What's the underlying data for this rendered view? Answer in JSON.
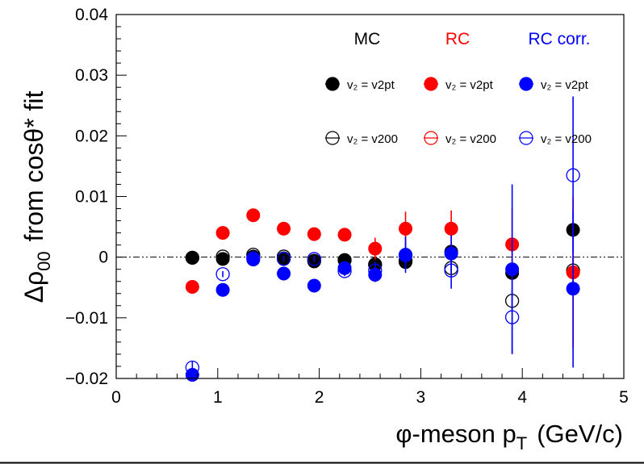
{
  "chart_data": {
    "type": "scatter",
    "xlabel": "φ-meson p",
    "xlabel_sub": "T",
    "xlabel_unit": "(GeV/c)",
    "ylabel": "Δρ",
    "ylabel_sub": "00",
    "ylabel_suffix": "from cosθ* fit",
    "xlim": [
      0,
      5
    ],
    "ylim": [
      -0.02,
      0.04
    ],
    "xticks": [
      0,
      1,
      2,
      3,
      4,
      5
    ],
    "yticks": [
      -0.02,
      -0.01,
      0,
      0.01,
      0.02,
      0.03,
      0.04
    ],
    "xtick_labels": [
      "0",
      "1",
      "2",
      "3",
      "4",
      "5"
    ],
    "ytick_labels": [
      "−0.02",
      "−0.01",
      "0",
      "0.01",
      "0.02",
      "0.03",
      "0.04"
    ],
    "grid": false,
    "reference_line": 0,
    "legend_position": "top-right",
    "legend_groups": [
      {
        "label": "MC",
        "color": "#000000"
      },
      {
        "label": "RC",
        "color": "#ff0000"
      },
      {
        "label": "RC corr.",
        "color": "#0000ff"
      }
    ],
    "legend_entries": [
      {
        "text": "v₂ = v2pt",
        "color": "#000000",
        "filled": true
      },
      {
        "text": "v₂ = v2pt",
        "color": "#ff0000",
        "filled": true
      },
      {
        "text": "v₂ = v2pt",
        "color": "#0000ff",
        "filled": true
      },
      {
        "text": "v₂ = v200",
        "color": "#000000",
        "filled": false
      },
      {
        "text": "v₂ = v200",
        "color": "#ff0000",
        "filled": false
      },
      {
        "text": "v₂ = v200",
        "color": "#0000ff",
        "filled": false
      }
    ],
    "series": [
      {
        "color": "#000000",
        "filled": false,
        "x": [
          0.75,
          1.05,
          1.35,
          1.65,
          1.95,
          2.25,
          2.55,
          2.85,
          3.3,
          3.9,
          4.5
        ],
        "y": [
          -0.0001,
          0.0001,
          0.0004,
          0.0001,
          -0.0006,
          -0.0005,
          -0.0012,
          -0.0006,
          -0.0018,
          -0.0072,
          -0.0022
        ],
        "err": [
          0.0002,
          0.0005,
          0.0004,
          0.0005,
          0.0004,
          0.0005,
          0.0005,
          0.0006,
          0.0009,
          0.0018,
          0.0022
        ]
      },
      {
        "color": "#000000",
        "filled": true,
        "x": [
          0.75,
          1.05,
          1.35,
          1.65,
          1.95,
          2.25,
          2.55,
          2.85,
          3.3,
          3.9,
          4.5
        ],
        "y": [
          -0.0001,
          -0.0003,
          0.0001,
          -0.0002,
          -0.0007,
          -0.0005,
          -0.0013,
          -0.0008,
          0.0009,
          -0.0026,
          0.0045
        ],
        "err": [
          0.0002,
          0.0003,
          0.0003,
          0.0003,
          0.0003,
          0.0004,
          0.0004,
          0.0005,
          0.0007,
          0.0012,
          0.0015
        ]
      },
      {
        "color": "#ff0000",
        "filled": true,
        "x": [
          0.75,
          1.05,
          1.35,
          1.65,
          1.95,
          2.25,
          2.55,
          2.85,
          3.3,
          3.9,
          4.5
        ],
        "y": [
          -0.0049,
          0.004,
          0.0069,
          0.0047,
          0.0038,
          0.0037,
          0.0014,
          0.0047,
          0.0047,
          0.0021,
          -0.0025
        ],
        "err": [
          0.0008,
          0.0006,
          0.0006,
          0.0006,
          0.0008,
          0.001,
          0.0018,
          0.0028,
          0.003,
          0.006,
          0.0125
        ]
      },
      {
        "color": "#0000ff",
        "filled": false,
        "x": [
          0.75,
          1.05,
          1.35,
          1.65,
          1.95,
          2.25,
          2.55,
          2.85,
          3.3,
          3.9,
          4.5
        ],
        "y": [
          -0.0182,
          -0.0028,
          -0.0002,
          -0.0003,
          -0.0003,
          -0.0023,
          -0.0022,
          0.0003,
          -0.0022,
          -0.0099,
          0.0135
        ],
        "err": [
          0.001,
          0.0005,
          0.0004,
          0.0005,
          0.0005,
          0.0008,
          0.0014,
          0.002,
          0.003,
          0.006,
          0.013
        ]
      },
      {
        "color": "#0000ff",
        "filled": true,
        "x": [
          0.75,
          1.05,
          1.35,
          1.65,
          1.95,
          2.25,
          2.55,
          2.85,
          3.3,
          3.9,
          4.5
        ],
        "y": [
          -0.0194,
          -0.0054,
          -0.0004,
          -0.0027,
          -0.0047,
          -0.0018,
          -0.0029,
          0.0004,
          0.0006,
          -0.002,
          -0.0052
        ],
        "err": [
          0.0008,
          0.0005,
          0.0004,
          0.0005,
          0.0006,
          0.0008,
          0.0012,
          0.003,
          0.003,
          0.014,
          0.013
        ]
      }
    ]
  }
}
